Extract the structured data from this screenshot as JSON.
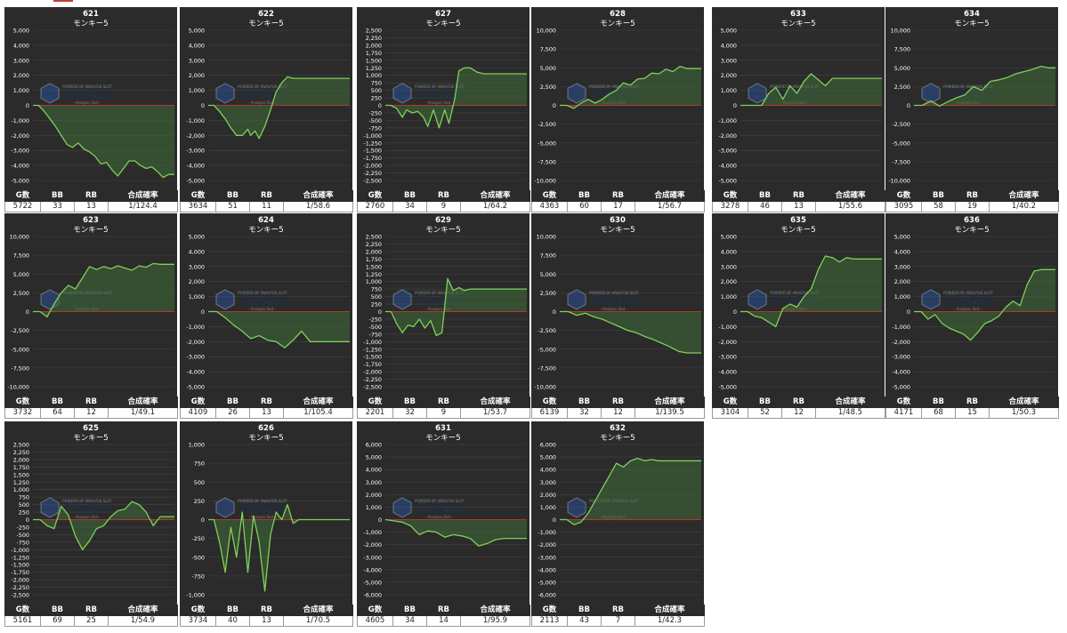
{
  "stats_headers": [
    "G数",
    "BB",
    "RB",
    "合成確率"
  ],
  "colors": {
    "line": "#7fd15a",
    "fill": "#3f6b36",
    "zero": "#b6382c",
    "grid": "#444444",
    "bg": "#2b2b2b",
    "text": "#ffffff"
  },
  "watermark": {
    "top": "POWERD BY ANALYSIS SLOT",
    "main": "アナスロ",
    "sub": "- Analysis Slot -"
  },
  "panels": [
    {
      "machine": "621",
      "model": "モンキー5",
      "stats": {
        "games": "5722",
        "bb": "33",
        "rb": "13",
        "prob": "1/124.4"
      },
      "chart_data": {
        "type": "area",
        "ylim": [
          -5000,
          5000
        ],
        "yticks": [
          -5000,
          -4000,
          -3000,
          -2000,
          -1000,
          0,
          1000,
          2000,
          3000,
          4000,
          5000
        ],
        "x": [
          0,
          0.04,
          0.08,
          0.12,
          0.16,
          0.2,
          0.24,
          0.28,
          0.32,
          0.36,
          0.4,
          0.44,
          0.48,
          0.52,
          0.56,
          0.6,
          0.64,
          0.68,
          0.72,
          0.76,
          0.8,
          0.84,
          0.88,
          0.92,
          0.96,
          1.0
        ],
        "values": [
          0,
          0,
          -400,
          -900,
          -1400,
          -2000,
          -2600,
          -2800,
          -2500,
          -2900,
          -3100,
          -3400,
          -3900,
          -3800,
          -4300,
          -4700,
          -4200,
          -3700,
          -3700,
          -4000,
          -4200,
          -4100,
          -4400,
          -4800,
          -4600,
          -4600
        ]
      }
    },
    {
      "machine": "622",
      "model": "モンキー5",
      "stats": {
        "games": "3634",
        "bb": "51",
        "rb": "11",
        "prob": "1/58.6"
      },
      "chart_data": {
        "type": "area",
        "ylim": [
          -5000,
          5000
        ],
        "yticks": [
          -5000,
          -4000,
          -3000,
          -2000,
          -1000,
          0,
          1000,
          2000,
          3000,
          4000,
          5000
        ],
        "x": [
          0,
          0.04,
          0.08,
          0.12,
          0.16,
          0.2,
          0.24,
          0.28,
          0.3,
          0.33,
          0.36,
          0.4,
          0.44,
          0.48,
          0.52,
          0.56,
          0.6,
          1.0
        ],
        "values": [
          0,
          0,
          -400,
          -900,
          -1500,
          -2000,
          -2000,
          -1600,
          -2000,
          -1700,
          -2200,
          -1400,
          -300,
          900,
          1500,
          1900,
          1800,
          1800
        ]
      }
    },
    {
      "machine": "627",
      "model": "モンキー5",
      "stats": {
        "games": "2760",
        "bb": "34",
        "rb": "9",
        "prob": "1/64.2"
      },
      "chart_data": {
        "type": "area",
        "ylim": [
          -2500,
          2500
        ],
        "yticks": [
          -2500,
          -2250,
          -2000,
          -1750,
          -1500,
          -1250,
          -1000,
          -750,
          -500,
          -250,
          0,
          250,
          500,
          750,
          1000,
          1250,
          1500,
          1750,
          2000,
          2250,
          2500
        ],
        "x": [
          0,
          0.04,
          0.08,
          0.12,
          0.15,
          0.19,
          0.23,
          0.27,
          0.3,
          0.34,
          0.38,
          0.42,
          0.45,
          0.49,
          0.52,
          0.56,
          0.6,
          0.65,
          0.7,
          1.0
        ],
        "values": [
          0,
          0,
          -100,
          -400,
          -150,
          -250,
          -200,
          -400,
          -700,
          -150,
          -750,
          -150,
          -600,
          200,
          1150,
          1250,
          1250,
          1100,
          1050,
          1050
        ]
      }
    },
    {
      "machine": "628",
      "model": "モンキー5",
      "stats": {
        "games": "4363",
        "bb": "60",
        "rb": "17",
        "prob": "1/56.7"
      },
      "chart_data": {
        "type": "area",
        "ylim": [
          -10000,
          10000
        ],
        "yticks": [
          -10000,
          -7500,
          -5000,
          -2500,
          0,
          2500,
          5000,
          7500,
          10000
        ],
        "x": [
          0,
          0.05,
          0.1,
          0.15,
          0.2,
          0.25,
          0.3,
          0.35,
          0.4,
          0.45,
          0.5,
          0.55,
          0.6,
          0.65,
          0.7,
          0.75,
          0.8,
          0.85,
          0.9,
          1.0
        ],
        "values": [
          0,
          0,
          -400,
          300,
          800,
          300,
          800,
          1500,
          2000,
          3000,
          2700,
          3500,
          3600,
          4300,
          4200,
          4800,
          4500,
          5200,
          4900,
          4900
        ]
      }
    },
    {
      "machine": "633",
      "model": "モンキー5",
      "stats": {
        "games": "3278",
        "bb": "46",
        "rb": "13",
        "prob": "1/55.6"
      },
      "chart_data": {
        "type": "area",
        "ylim": [
          -5000,
          5000
        ],
        "yticks": [
          -5000,
          -4000,
          -3000,
          -2000,
          -1000,
          0,
          1000,
          2000,
          3000,
          4000,
          5000
        ],
        "x": [
          0,
          0.05,
          0.1,
          0.15,
          0.2,
          0.25,
          0.3,
          0.35,
          0.4,
          0.45,
          0.5,
          0.55,
          0.6,
          0.65,
          0.7,
          0.75,
          1.0
        ],
        "values": [
          0,
          0,
          0,
          0,
          800,
          1200,
          400,
          1300,
          800,
          1600,
          2100,
          1700,
          1300,
          1800,
          1800,
          1800,
          1800
        ]
      }
    },
    {
      "machine": "634",
      "model": "モンキー5",
      "stats": {
        "games": "3095",
        "bb": "58",
        "rb": "19",
        "prob": "1/40.2"
      },
      "chart_data": {
        "type": "area",
        "ylim": [
          -10000,
          10000
        ],
        "yticks": [
          -10000,
          -7500,
          -5000,
          -2500,
          0,
          2500,
          5000,
          7500,
          10000
        ],
        "x": [
          0,
          0.06,
          0.12,
          0.18,
          0.24,
          0.3,
          0.36,
          0.42,
          0.48,
          0.54,
          0.6,
          0.66,
          0.72,
          0.78,
          0.84,
          0.9,
          0.95,
          1.0
        ],
        "values": [
          0,
          0,
          600,
          -100,
          500,
          1000,
          1400,
          2500,
          2000,
          3200,
          3400,
          3700,
          4200,
          4500,
          4800,
          5200,
          5000,
          5000
        ]
      }
    },
    {
      "machine": "623",
      "model": "モンキー5",
      "stats": {
        "games": "3732",
        "bb": "64",
        "rb": "12",
        "prob": "1/49.1"
      },
      "chart_data": {
        "type": "area",
        "ylim": [
          -10000,
          10000
        ],
        "yticks": [
          -10000,
          -7500,
          -5000,
          -2500,
          0,
          2500,
          5000,
          7500,
          10000
        ],
        "x": [
          0,
          0.05,
          0.1,
          0.15,
          0.2,
          0.25,
          0.3,
          0.35,
          0.4,
          0.45,
          0.5,
          0.55,
          0.6,
          0.65,
          0.7,
          0.75,
          0.8,
          0.85,
          0.9,
          1.0
        ],
        "values": [
          0,
          0,
          -700,
          1000,
          2500,
          3500,
          3000,
          4500,
          6000,
          5600,
          6000,
          5700,
          6100,
          5800,
          5500,
          6100,
          5900,
          6400,
          6300,
          6300
        ]
      }
    },
    {
      "machine": "624",
      "model": "モンキー5",
      "stats": {
        "games": "4109",
        "bb": "26",
        "rb": "13",
        "prob": "1/105.4"
      },
      "chart_data": {
        "type": "area",
        "ylim": [
          -5000,
          5000
        ],
        "yticks": [
          -5000,
          -4000,
          -3000,
          -2000,
          -1000,
          0,
          1000,
          2000,
          3000,
          4000,
          5000
        ],
        "x": [
          0,
          0.06,
          0.12,
          0.18,
          0.24,
          0.3,
          0.36,
          0.42,
          0.48,
          0.54,
          0.6,
          0.66,
          0.72,
          1.0
        ],
        "values": [
          0,
          0,
          -400,
          -900,
          -1300,
          -1800,
          -1600,
          -1900,
          -2000,
          -2400,
          -1900,
          -1300,
          -2000,
          -2000
        ]
      }
    },
    {
      "machine": "629",
      "model": "モンキー5",
      "stats": {
        "games": "2201",
        "bb": "32",
        "rb": "9",
        "prob": "1/53.7"
      },
      "chart_data": {
        "type": "area",
        "ylim": [
          -2500,
          2500
        ],
        "yticks": [
          -2500,
          -2250,
          -2000,
          -1750,
          -1500,
          -1250,
          -1000,
          -750,
          -500,
          -250,
          0,
          250,
          500,
          750,
          1000,
          1250,
          1500,
          1750,
          2000,
          2250,
          2500
        ],
        "x": [
          0,
          0.04,
          0.08,
          0.12,
          0.16,
          0.2,
          0.24,
          0.28,
          0.32,
          0.36,
          0.4,
          0.44,
          0.48,
          0.52,
          0.56,
          0.6,
          1.0
        ],
        "values": [
          0,
          0,
          -400,
          -700,
          -450,
          -500,
          -250,
          -550,
          -300,
          -800,
          -700,
          1100,
          700,
          800,
          700,
          750,
          750
        ]
      }
    },
    {
      "machine": "630",
      "model": "モンキー5",
      "stats": {
        "games": "6139",
        "bb": "32",
        "rb": "12",
        "prob": "1/139.5"
      },
      "chart_data": {
        "type": "area",
        "ylim": [
          -10000,
          10000
        ],
        "yticks": [
          -10000,
          -7500,
          -5000,
          -2500,
          0,
          2500,
          5000,
          7500,
          10000
        ],
        "x": [
          0,
          0.06,
          0.12,
          0.18,
          0.24,
          0.3,
          0.36,
          0.42,
          0.48,
          0.54,
          0.6,
          0.66,
          0.72,
          0.78,
          0.84,
          0.9,
          1.0
        ],
        "values": [
          0,
          0,
          -500,
          -200,
          -700,
          -1000,
          -1500,
          -2000,
          -2500,
          -2800,
          -3300,
          -3700,
          -4200,
          -4700,
          -5300,
          -5500,
          -5500
        ]
      }
    },
    {
      "machine": "635",
      "model": "モンキー5",
      "stats": {
        "games": "3104",
        "bb": "52",
        "rb": "12",
        "prob": "1/48.5"
      },
      "chart_data": {
        "type": "area",
        "ylim": [
          -5000,
          5000
        ],
        "yticks": [
          -5000,
          -4000,
          -3000,
          -2000,
          -1000,
          0,
          1000,
          2000,
          3000,
          4000,
          5000
        ],
        "x": [
          0,
          0.05,
          0.1,
          0.15,
          0.2,
          0.25,
          0.3,
          0.35,
          0.4,
          0.45,
          0.5,
          0.55,
          0.6,
          0.65,
          0.7,
          0.75,
          0.8,
          0.85,
          1.0
        ],
        "values": [
          0,
          0,
          -300,
          -400,
          -700,
          -1000,
          200,
          500,
          300,
          1000,
          1500,
          2800,
          3700,
          3600,
          3300,
          3600,
          3500,
          3500,
          3500
        ]
      }
    },
    {
      "machine": "636",
      "model": "モンキー5",
      "stats": {
        "games": "4171",
        "bb": "68",
        "rb": "15",
        "prob": "1/50.3"
      },
      "chart_data": {
        "type": "area",
        "ylim": [
          -5000,
          5000
        ],
        "yticks": [
          -5000,
          -4000,
          -3000,
          -2000,
          -1000,
          0,
          1000,
          2000,
          3000,
          4000,
          5000
        ],
        "x": [
          0,
          0.05,
          0.1,
          0.15,
          0.2,
          0.25,
          0.3,
          0.35,
          0.4,
          0.45,
          0.5,
          0.55,
          0.6,
          0.65,
          0.7,
          0.75,
          0.8,
          0.85,
          0.9,
          1.0
        ],
        "values": [
          0,
          0,
          -500,
          -200,
          -800,
          -1100,
          -1300,
          -1500,
          -1900,
          -1400,
          -800,
          -600,
          -300,
          300,
          700,
          400,
          1800,
          2700,
          2800,
          2800
        ]
      }
    },
    {
      "machine": "625",
      "model": "モンキー5",
      "stats": {
        "games": "5161",
        "bb": "69",
        "rb": "25",
        "prob": "1/54.9"
      },
      "chart_data": {
        "type": "area",
        "ylim": [
          -2500,
          2500
        ],
        "yticks": [
          -2500,
          -2250,
          -2000,
          -1750,
          -1500,
          -1250,
          -1000,
          -750,
          -500,
          -250,
          0,
          250,
          500,
          750,
          1000,
          1250,
          1500,
          1750,
          2000,
          2250,
          2500
        ],
        "x": [
          0,
          0.05,
          0.1,
          0.15,
          0.2,
          0.25,
          0.3,
          0.35,
          0.4,
          0.45,
          0.5,
          0.55,
          0.6,
          0.65,
          0.7,
          0.75,
          0.8,
          0.85,
          0.9,
          1.0
        ],
        "values": [
          0,
          0,
          -200,
          -300,
          450,
          150,
          -550,
          -1000,
          -700,
          -300,
          -200,
          100,
          300,
          350,
          600,
          500,
          250,
          -200,
          100,
          100
        ]
      }
    },
    {
      "machine": "626",
      "model": "モンキー5",
      "stats": {
        "games": "3734",
        "bb": "40",
        "rb": "13",
        "prob": "1/70.5"
      },
      "chart_data": {
        "type": "area",
        "ylim": [
          -1000,
          1000
        ],
        "yticks": [
          -1000,
          -750,
          -500,
          -250,
          0,
          250,
          500,
          750,
          1000
        ],
        "x": [
          0,
          0.04,
          0.08,
          0.12,
          0.16,
          0.2,
          0.24,
          0.28,
          0.32,
          0.36,
          0.4,
          0.44,
          0.48,
          0.52,
          0.56,
          0.6,
          0.64,
          0.68,
          1.0
        ],
        "values": [
          0,
          0,
          -300,
          -700,
          -100,
          -500,
          100,
          -700,
          50,
          -300,
          -950,
          -200,
          100,
          0,
          200,
          -50,
          0,
          0,
          0
        ]
      }
    },
    {
      "machine": "631",
      "model": "モンキー5",
      "stats": {
        "games": "4605",
        "bb": "34",
        "rb": "14",
        "prob": "1/95.9"
      },
      "chart_data": {
        "type": "area",
        "ylim": [
          -6000,
          6000
        ],
        "yticks": [
          -6000,
          -5000,
          -4000,
          -3000,
          -2000,
          -1000,
          0,
          1000,
          2000,
          3000,
          4000,
          5000,
          6000
        ],
        "x": [
          0,
          0.06,
          0.12,
          0.18,
          0.24,
          0.3,
          0.36,
          0.42,
          0.48,
          0.54,
          0.6,
          0.66,
          0.72,
          0.78,
          0.84,
          0.9,
          1.0
        ],
        "values": [
          0,
          -100,
          -200,
          -500,
          -1200,
          -900,
          -1000,
          -1400,
          -1200,
          -1300,
          -1500,
          -2100,
          -1900,
          -1600,
          -1500,
          -1500,
          -1500
        ]
      }
    },
    {
      "machine": "632",
      "model": "モンキー5",
      "stats": {
        "games": "2113",
        "bb": "43",
        "rb": "7",
        "prob": "1/42.3"
      },
      "chart_data": {
        "type": "area",
        "ylim": [
          -6000,
          6000
        ],
        "yticks": [
          -6000,
          -5000,
          -4000,
          -3000,
          -2000,
          -1000,
          0,
          1000,
          2000,
          3000,
          4000,
          5000,
          6000
        ],
        "x": [
          0,
          0.05,
          0.1,
          0.15,
          0.2,
          0.25,
          0.3,
          0.35,
          0.4,
          0.45,
          0.5,
          0.55,
          0.6,
          0.65,
          0.7,
          0.75,
          1.0
        ],
        "values": [
          0,
          0,
          -400,
          -200,
          500,
          1500,
          2500,
          3500,
          4500,
          4200,
          4700,
          4900,
          4700,
          4800,
          4700,
          4700,
          4700
        ]
      }
    }
  ]
}
